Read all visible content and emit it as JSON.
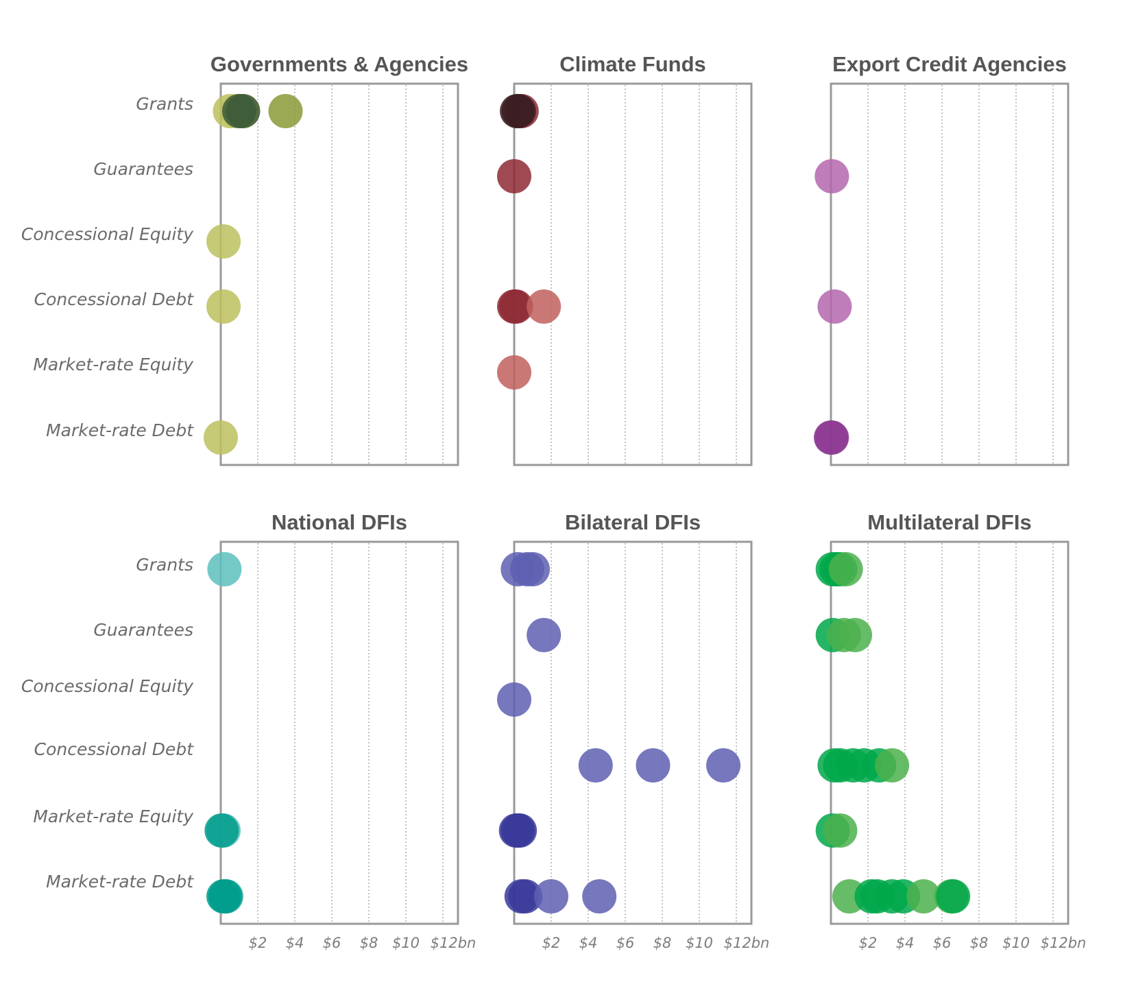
{
  "chart_data": {
    "type": "scatter",
    "unit_suffix": "bn",
    "x_ticks": [
      "$2",
      "$4",
      "$6",
      "$8",
      "$10",
      "$12bn"
    ],
    "xlim": [
      0,
      12.8
    ],
    "grid": "vertical dotted",
    "categories": [
      "Grants",
      "Guarantees",
      "Concessional Equity",
      "Concessional Debt",
      "Market-rate Equity",
      "Market-rate Debt"
    ],
    "panels": [
      {
        "title": "Governments & Agencies",
        "colors": {
          "light": "#bcbf5e",
          "dark": "#8a9a37",
          "darkest": "#3d5a3a"
        },
        "points": [
          {
            "category": "Grants",
            "x": 0.5,
            "shade": "light"
          },
          {
            "category": "Grants",
            "x": 0.9,
            "shade": "light"
          },
          {
            "category": "Grants",
            "x": 1.2,
            "shade": "light"
          },
          {
            "category": "Grants",
            "x": 1.0,
            "shade": "darkest"
          },
          {
            "category": "Grants",
            "x": 1.2,
            "shade": "darkest"
          },
          {
            "category": "Grants",
            "x": 3.5,
            "shade": "dark"
          },
          {
            "category": "Concessional Equity",
            "x": 0.15,
            "shade": "light"
          },
          {
            "category": "Concessional Debt",
            "x": 0.15,
            "shade": "light"
          },
          {
            "category": "Market-rate Debt",
            "x": 0.0,
            "shade": "light"
          }
        ]
      },
      {
        "title": "Climate Funds",
        "colors": {
          "light": "#c0605e",
          "dark": "#8e2a35",
          "darkest": "#3b1d22"
        },
        "points": [
          {
            "category": "Grants",
            "x": 0.4,
            "shade": "dark"
          },
          {
            "category": "Grants",
            "x": 0.15,
            "shade": "darkest"
          },
          {
            "category": "Grants",
            "x": 0.25,
            "shade": "darkest"
          },
          {
            "category": "Guarantees",
            "x": 0.0,
            "shade": "dark"
          },
          {
            "category": "Concessional Debt",
            "x": 0.0,
            "shade": "dark"
          },
          {
            "category": "Concessional Debt",
            "x": 0.1,
            "shade": "dark"
          },
          {
            "category": "Concessional Debt",
            "x": 1.6,
            "shade": "light"
          },
          {
            "category": "Market-rate Equity",
            "x": 0.0,
            "shade": "light"
          }
        ]
      },
      {
        "title": "Export Credit Agencies",
        "colors": {
          "light": "#b466ae",
          "dark": "#8d3a93",
          "darkest": "#7a2d80"
        },
        "points": [
          {
            "category": "Guarantees",
            "x": 0.05,
            "shade": "light"
          },
          {
            "category": "Concessional Debt",
            "x": 0.2,
            "shade": "light"
          },
          {
            "category": "Market-rate Debt",
            "x": 0.0,
            "shade": "dark"
          },
          {
            "category": "Market-rate Debt",
            "x": 0.05,
            "shade": "dark"
          }
        ]
      },
      {
        "title": "National DFIs",
        "colors": {
          "light": "#5cc0bd",
          "dark": "#009e8c",
          "darkest": "#008a78"
        },
        "points": [
          {
            "category": "Grants",
            "x": 0.2,
            "shade": "light"
          },
          {
            "category": "Market-rate Equity",
            "x": 0.15,
            "shade": "light"
          },
          {
            "category": "Market-rate Equity",
            "x": 0.05,
            "shade": "dark"
          },
          {
            "category": "Market-rate Debt",
            "x": 0.3,
            "shade": "light"
          },
          {
            "category": "Market-rate Debt",
            "x": 0.15,
            "shade": "dark"
          },
          {
            "category": "Market-rate Debt",
            "x": 0.25,
            "shade": "dark"
          }
        ]
      },
      {
        "title": "Bilateral DFIs",
        "colors": {
          "light": "#5e5fb2",
          "dark": "#3a3a9a",
          "darkest": "#2b2b8a"
        },
        "points": [
          {
            "category": "Grants",
            "x": 0.2,
            "shade": "light"
          },
          {
            "category": "Grants",
            "x": 0.7,
            "shade": "light"
          },
          {
            "category": "Grants",
            "x": 1.0,
            "shade": "light"
          },
          {
            "category": "Guarantees",
            "x": 1.6,
            "shade": "light"
          },
          {
            "category": "Concessional Equity",
            "x": 0.0,
            "shade": "light"
          },
          {
            "category": "Concessional Debt",
            "x": 4.4,
            "shade": "light"
          },
          {
            "category": "Concessional Debt",
            "x": 7.5,
            "shade": "light"
          },
          {
            "category": "Concessional Debt",
            "x": 11.3,
            "shade": "light"
          },
          {
            "category": "Market-rate Equity",
            "x": 0.1,
            "shade": "dark"
          },
          {
            "category": "Market-rate Equity",
            "x": 0.2,
            "shade": "dark"
          },
          {
            "category": "Market-rate Equity",
            "x": 0.3,
            "shade": "dark"
          },
          {
            "category": "Market-rate Debt",
            "x": 0.4,
            "shade": "dark"
          },
          {
            "category": "Market-rate Debt",
            "x": 0.6,
            "shade": "dark"
          },
          {
            "category": "Market-rate Debt",
            "x": 2.0,
            "shade": "light"
          },
          {
            "category": "Market-rate Debt",
            "x": 4.6,
            "shade": "light"
          }
        ]
      },
      {
        "title": "Multilateral DFIs",
        "colors": {
          "light": "#4cb04c",
          "dark": "#00a84a",
          "darkest": "#009c44"
        },
        "points": [
          {
            "category": "Grants",
            "x": 0.1,
            "shade": "dark"
          },
          {
            "category": "Grants",
            "x": 0.3,
            "shade": "dark"
          },
          {
            "category": "Grants",
            "x": 0.5,
            "shade": "dark"
          },
          {
            "category": "Grants",
            "x": 0.8,
            "shade": "light"
          },
          {
            "category": "Guarantees",
            "x": 0.1,
            "shade": "dark"
          },
          {
            "category": "Guarantees",
            "x": 0.7,
            "shade": "light"
          },
          {
            "category": "Guarantees",
            "x": 1.3,
            "shade": "light"
          },
          {
            "category": "Market-rate Equity",
            "x": 0.1,
            "shade": "dark"
          },
          {
            "category": "Market-rate Equity",
            "x": 0.5,
            "shade": "light"
          },
          {
            "category": "Concessional Debt",
            "x": 0.2,
            "shade": "dark"
          },
          {
            "category": "Concessional Debt",
            "x": 0.5,
            "shade": "dark"
          },
          {
            "category": "Concessional Debt",
            "x": 1.2,
            "shade": "dark"
          },
          {
            "category": "Concessional Debt",
            "x": 1.8,
            "shade": "dark"
          },
          {
            "category": "Concessional Debt",
            "x": 2.6,
            "shade": "dark"
          },
          {
            "category": "Concessional Debt",
            "x": 3.3,
            "shade": "light"
          },
          {
            "category": "Market-rate Debt",
            "x": 1.0,
            "shade": "light"
          },
          {
            "category": "Market-rate Debt",
            "x": 2.2,
            "shade": "dark"
          },
          {
            "category": "Market-rate Debt",
            "x": 2.5,
            "shade": "dark"
          },
          {
            "category": "Market-rate Debt",
            "x": 3.3,
            "shade": "dark"
          },
          {
            "category": "Market-rate Debt",
            "x": 3.9,
            "shade": "dark"
          },
          {
            "category": "Market-rate Debt",
            "x": 5.0,
            "shade": "light"
          },
          {
            "category": "Market-rate Debt",
            "x": 6.5,
            "shade": "light"
          },
          {
            "category": "Market-rate Debt",
            "x": 6.6,
            "shade": "dark"
          }
        ]
      }
    ]
  }
}
